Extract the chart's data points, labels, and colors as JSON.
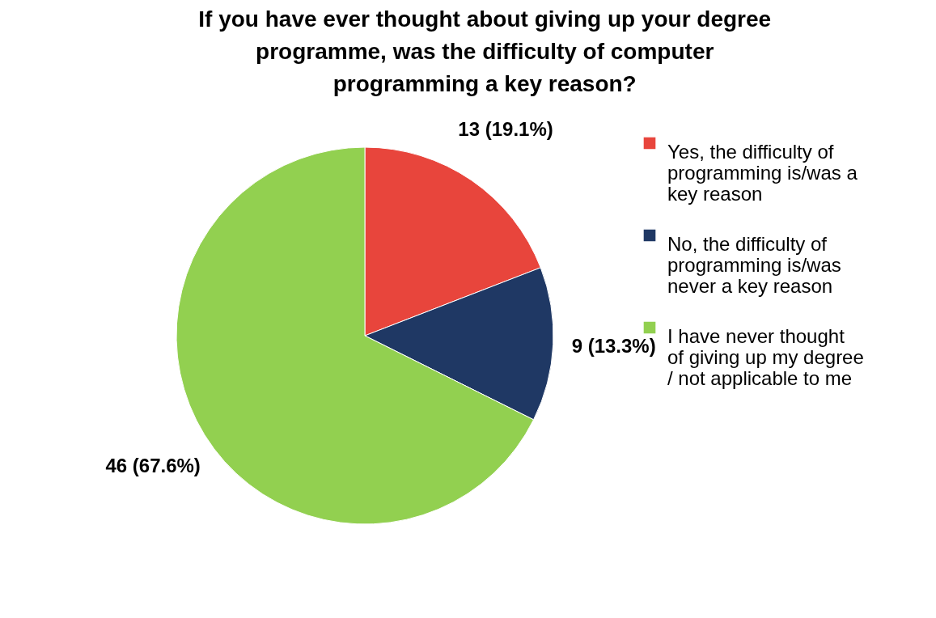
{
  "chart_data": {
    "type": "pie",
    "title": "If you have ever thought about giving up your degree programme, was the difficulty of computer programming a key reason?",
    "categories": [
      "Yes, the difficulty of programming is/was a key reason",
      "No, the difficulty of programming is/was never a key reason",
      "I have never thought of giving up my degree / not applicable to me"
    ],
    "values": [
      13,
      9,
      46
    ],
    "value_labels": [
      "13 (19.1%)",
      "9 (13.3%)",
      "46 (67.6%)"
    ],
    "colors": [
      "#e8453c",
      "#1f3864",
      "#92d050"
    ],
    "legend": "right"
  }
}
